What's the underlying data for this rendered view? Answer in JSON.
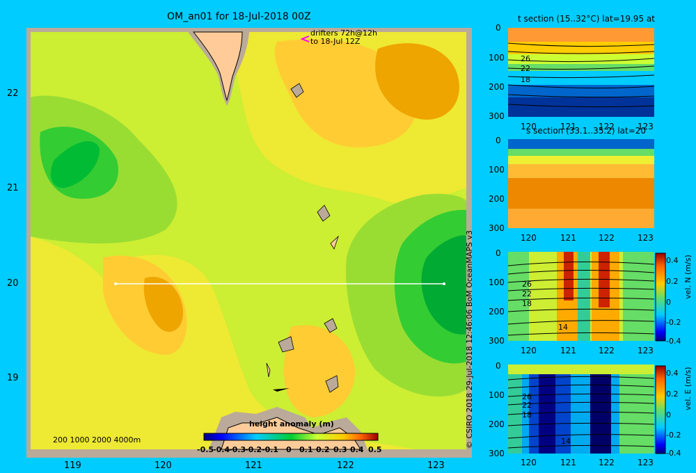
{
  "main_map": {
    "title": "OM_an01 for 18-Jul-2018 00Z",
    "drifters_label_line1": "drifters 72h@12h",
    "drifters_label_line2": "to 18-Jul 12Z",
    "depth_legend": "200  1000  2000  4000m",
    "colorbar_title": "height anomaly (m)",
    "colorbar_ticks": [
      "-0.5",
      "-0.4",
      "-0.3",
      "-0.2",
      "-0.1",
      "0",
      "0.1",
      "0.2",
      "0.3",
      "0.4",
      "0.5"
    ],
    "x_ticks": [
      "119",
      "120",
      "121",
      "122",
      "123"
    ],
    "y_ticks": [
      "22",
      "21",
      "20",
      "19"
    ]
  },
  "panels": {
    "t_section": {
      "title": "t section (15..32°C) lat=19.95 at",
      "contour_labels": [
        "26",
        "22",
        "18"
      ]
    },
    "s_section": {
      "title": "s section (33.1..35.2) lat=20"
    },
    "vn_section": {
      "contour_labels": [
        "26",
        "22",
        "18",
        "14"
      ],
      "colorbar_label": "vel. N  (m/s)",
      "colorbar_ticks": [
        "0.4",
        "0.2",
        "0",
        "-0.2",
        "-0.4"
      ]
    },
    "ve_section": {
      "contour_labels": [
        "26",
        "22",
        "18",
        "14"
      ],
      "colorbar_label": "vel. E  (m/s)",
      "colorbar_ticks": [
        "0.4",
        "0.2",
        "0",
        "-0.2",
        "-0.4"
      ]
    },
    "depth_ticks": [
      "0",
      "100",
      "200",
      "300"
    ],
    "lon_ticks": [
      "120",
      "121",
      "122",
      "123"
    ]
  },
  "credit": "© CSIRO 2018   29-Jul-2018 12:46:06 BoM OceanMAPS v3",
  "colors": {
    "background": "#00CCFF",
    "land": "#FFCC99",
    "shelf": "#BBAA99",
    "transect": "#FFFFFF"
  }
}
